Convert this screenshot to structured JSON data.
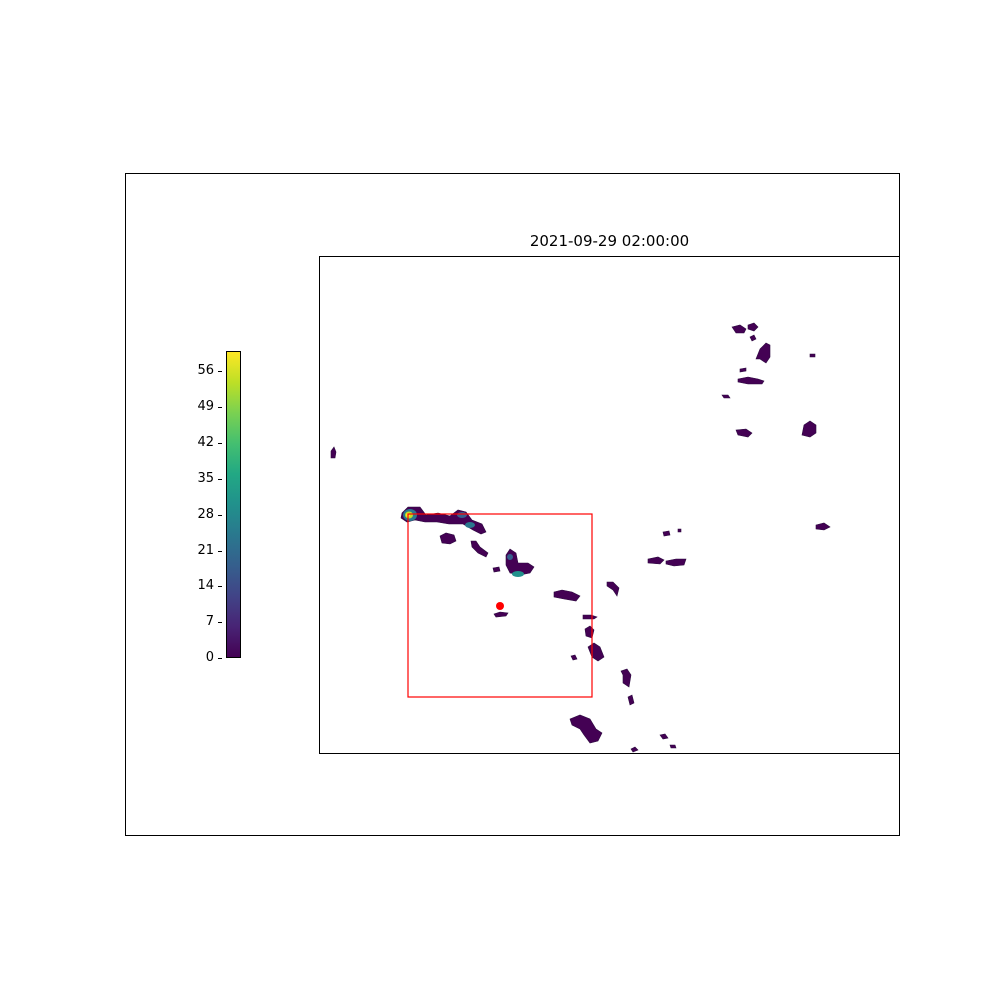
{
  "title": "2021-09-29 02:00:00",
  "colorbar": {
    "colormap": "viridis",
    "range": [
      0,
      60
    ],
    "ticks": [
      "0",
      "7",
      "14",
      "21",
      "28",
      "35",
      "42",
      "49",
      "56"
    ]
  },
  "colors": {
    "region_box": "#ff0000",
    "marker": "#ff0000",
    "cell_low": "#440154",
    "cell_mid": "#21918c",
    "cell_high": "#fde725"
  },
  "map": {
    "features": [
      "precipitation-cells",
      "region-box",
      "center-marker"
    ]
  }
}
